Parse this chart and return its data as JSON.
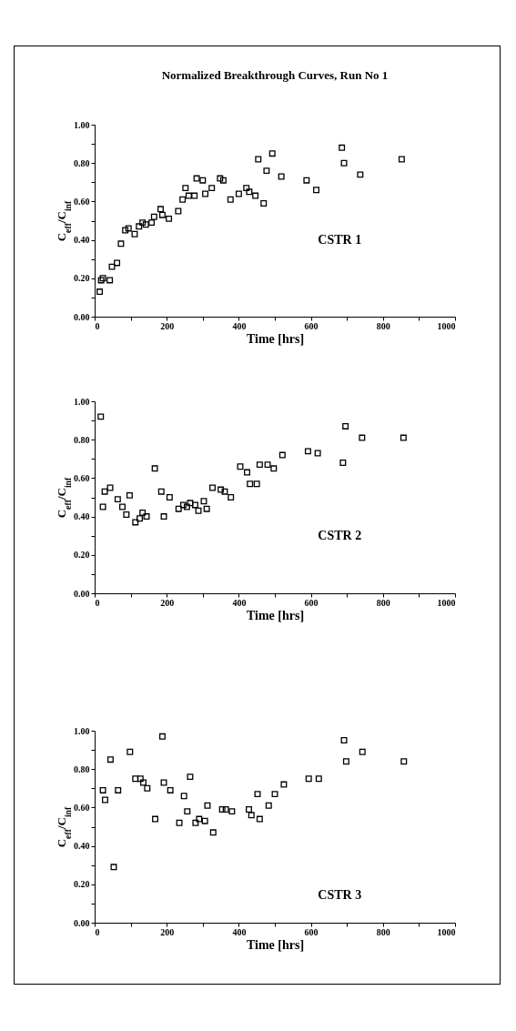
{
  "chart_data": [
    {
      "type": "scatter",
      "title": "Normalized Breakthrough Curves, Run No 1",
      "xlabel": "Time [hrs]",
      "ylabel": "C$_{eff}$/C$_{inf}$",
      "annotations": [
        "CSTR 1"
      ],
      "marker": "square",
      "xlim": [
        0,
        1000
      ],
      "ylim": [
        0,
        1
      ],
      "xticks": [
        0,
        {
          "value": 100,
          "label": null
        },
        200,
        {
          "value": 300,
          "label": null
        },
        400,
        {
          "value": 500,
          "label": null
        },
        600,
        {
          "value": 700,
          "label": null
        },
        800,
        {
          "value": 900,
          "label": null
        },
        1000
      ],
      "yticks": [
        {
          "value": 0,
          "label": "0.00"
        },
        {
          "value": 0.1,
          "label": null
        },
        {
          "value": 0.2,
          "label": "0.20"
        },
        {
          "value": 0.3,
          "label": null
        },
        {
          "value": 0.4,
          "label": "0.40"
        },
        {
          "value": 0.5,
          "label": null
        },
        {
          "value": 0.6,
          "label": "0.60"
        },
        {
          "value": 0.7,
          "label": null
        },
        {
          "value": 0.8,
          "label": "0.80"
        },
        {
          "value": 0.9,
          "label": null
        },
        {
          "value": 1,
          "label": "1.00"
        }
      ],
      "series": [
        {
          "color": "#000000",
          "x": [
            14,
            18,
            23,
            42,
            48,
            62,
            73,
            85,
            94,
            111,
            123,
            133,
            142,
            158,
            165,
            183,
            188,
            206,
            232,
            244,
            252,
            261,
            277,
            283,
            300,
            307,
            325,
            348,
            357,
            377,
            400,
            421,
            429,
            446,
            454,
            469,
            477,
            493,
            518,
            588,
            615,
            686,
            692,
            737,
            852
          ],
          "values": [
            0.13,
            0.19,
            0.2,
            0.19,
            0.26,
            0.28,
            0.38,
            0.45,
            0.46,
            0.43,
            0.47,
            0.49,
            0.48,
            0.49,
            0.52,
            0.56,
            0.53,
            0.51,
            0.55,
            0.61,
            0.67,
            0.63,
            0.63,
            0.72,
            0.71,
            0.64,
            0.67,
            0.72,
            0.71,
            0.61,
            0.64,
            0.67,
            0.65,
            0.63,
            0.82,
            0.59,
            0.76,
            0.85,
            0.73,
            0.71,
            0.66,
            0.88,
            0.8,
            0.74,
            0.82
          ]
        }
      ]
    },
    {
      "type": "scatter",
      "xlabel": "Time [hrs]",
      "ylabel": "C$_{eff}$/C$_{inf}$",
      "annotations": [
        "CSTR 2"
      ],
      "marker": "square",
      "xlim": [
        0,
        1000
      ],
      "ylim": [
        0,
        1
      ],
      "xticks": [
        0,
        {
          "value": 100,
          "label": null
        },
        200,
        {
          "value": 300,
          "label": null
        },
        400,
        {
          "value": 500,
          "label": null
        },
        600,
        {
          "value": 700,
          "label": null
        },
        800,
        {
          "value": 900,
          "label": null
        },
        1000
      ],
      "yticks": [
        {
          "value": 0,
          "label": "0.00"
        },
        {
          "value": 0.1,
          "label": null
        },
        {
          "value": 0.2,
          "label": "0.20"
        },
        {
          "value": 0.3,
          "label": null
        },
        {
          "value": 0.4,
          "label": "0.40"
        },
        {
          "value": 0.5,
          "label": null
        },
        {
          "value": 0.6,
          "label": "0.60"
        },
        {
          "value": 0.7,
          "label": null
        },
        {
          "value": 0.8,
          "label": "0.80"
        },
        {
          "value": 0.9,
          "label": null
        },
        {
          "value": 1,
          "label": "1.00"
        }
      ],
      "series": [
        {
          "color": "#000000",
          "x": [
            17,
            23,
            28,
            43,
            64,
            77,
            88,
            97,
            113,
            125,
            133,
            144,
            167,
            185,
            192,
            208,
            233,
            246,
            256,
            265,
            279,
            288,
            303,
            311,
            327,
            350,
            361,
            378,
            404,
            423,
            431,
            450,
            458,
            480,
            497,
            521,
            592,
            619,
            689,
            696,
            742,
            857
          ],
          "values": [
            0.92,
            0.45,
            0.53,
            0.55,
            0.49,
            0.45,
            0.41,
            0.51,
            0.37,
            0.39,
            0.42,
            0.4,
            0.65,
            0.53,
            0.4,
            0.5,
            0.44,
            0.46,
            0.45,
            0.47,
            0.46,
            0.43,
            0.48,
            0.44,
            0.55,
            0.54,
            0.53,
            0.5,
            0.66,
            0.63,
            0.57,
            0.57,
            0.67,
            0.67,
            0.65,
            0.72,
            0.74,
            0.73,
            0.68,
            0.87,
            0.81,
            0.81
          ]
        }
      ]
    },
    {
      "type": "scatter",
      "xlabel": "Time [hrs]",
      "ylabel": "C$_{eff}$/C$_{inf}$",
      "annotations": [
        "CSTR 3"
      ],
      "marker": "square",
      "xlim": [
        0,
        1000
      ],
      "ylim": [
        0,
        1
      ],
      "xticks": [
        0,
        {
          "value": 100,
          "label": null
        },
        200,
        {
          "value": 300,
          "label": null
        },
        400,
        {
          "value": 500,
          "label": null
        },
        600,
        {
          "value": 700,
          "label": null
        },
        800,
        {
          "value": 900,
          "label": null
        },
        1000
      ],
      "yticks": [
        {
          "value": 0,
          "label": "0.00"
        },
        {
          "value": 0.1,
          "label": null
        },
        {
          "value": 0.2,
          "label": "0.20"
        },
        {
          "value": 0.3,
          "label": null
        },
        {
          "value": 0.4,
          "label": "0.40"
        },
        {
          "value": 0.5,
          "label": null
        },
        {
          "value": 0.6,
          "label": "0.60"
        },
        {
          "value": 0.7,
          "label": null
        },
        {
          "value": 0.8,
          "label": "0.80"
        },
        {
          "value": 0.9,
          "label": null
        },
        {
          "value": 1,
          "label": "1.00"
        }
      ],
      "series": [
        {
          "color": "#000000",
          "x": [
            23,
            29,
            44,
            53,
            65,
            98,
            113,
            127,
            135,
            146,
            168,
            188,
            192,
            210,
            235,
            248,
            257,
            265,
            280,
            290,
            306,
            313,
            329,
            354,
            364,
            381,
            428,
            435,
            452,
            458,
            483,
            500,
            525,
            594,
            622,
            692,
            698,
            743,
            858
          ],
          "values": [
            0.69,
            0.64,
            0.85,
            0.29,
            0.69,
            0.89,
            0.75,
            0.75,
            0.73,
            0.7,
            0.54,
            0.97,
            0.73,
            0.69,
            0.52,
            0.66,
            0.58,
            0.76,
            0.52,
            0.54,
            0.53,
            0.61,
            0.47,
            0.59,
            0.59,
            0.58,
            0.59,
            0.56,
            0.67,
            0.54,
            0.61,
            0.67,
            0.72,
            0.75,
            0.75,
            0.95,
            0.84,
            0.89,
            0.84
          ]
        }
      ]
    }
  ]
}
